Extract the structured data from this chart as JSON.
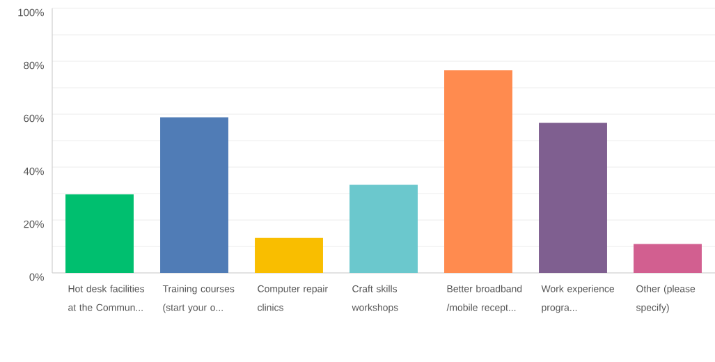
{
  "chart_data": {
    "type": "bar",
    "categories": [
      "Hot desk facilities at the Commun...",
      "Training courses (start your o...",
      "Computer repair clinics",
      "Craft skills workshops",
      "Better broadband /mobile recept...",
      "Work experience progra...",
      "Other (please specify)"
    ],
    "values": [
      29.7,
      58.8,
      13.2,
      33.3,
      76.6,
      56.7,
      10.9
    ],
    "colors": [
      "#00bf6f",
      "#507cb6",
      "#f9be00",
      "#6bc8cd",
      "#ff8b4f",
      "#7f5f90",
      "#d25f90"
    ],
    "ylim": [
      0,
      100
    ],
    "yticks": [
      {
        "value": 0,
        "label": "0%"
      },
      {
        "value": 10,
        "label": null
      },
      {
        "value": 20,
        "label": "20%"
      },
      {
        "value": 30,
        "label": null
      },
      {
        "value": 40,
        "label": "40%"
      },
      {
        "value": 50,
        "label": null
      },
      {
        "value": 60,
        "label": "60%"
      },
      {
        "value": 70,
        "label": null
      },
      {
        "value": 80,
        "label": "80%"
      },
      {
        "value": 90,
        "label": null
      },
      {
        "value": 100,
        "label": "100%"
      }
    ],
    "grid": "y"
  }
}
